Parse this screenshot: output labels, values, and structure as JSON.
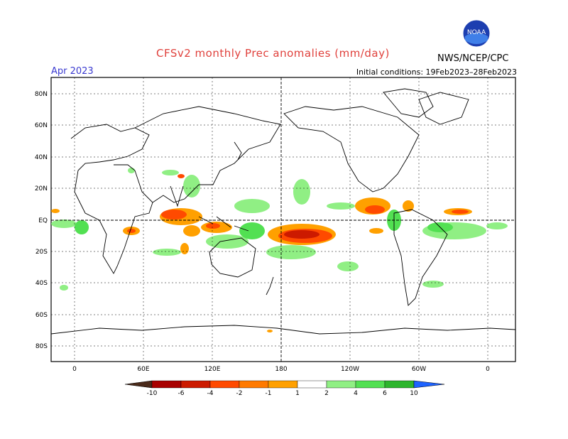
{
  "header": {
    "title": "CFSv2 monthly Prec anomalies (mm/day)",
    "month": "Apr 2023",
    "initial_conditions": "Initial conditions: 19Feb2023–28Feb2023",
    "org": "NWS/NCEP/CPC",
    "logo_text": "NOAA",
    "logo_icon": "noaa-logo-icon"
  },
  "map": {
    "lat_labels": [
      "80N",
      "60N",
      "40N",
      "20N",
      "EQ",
      "20S",
      "40S",
      "60S",
      "80S"
    ],
    "lon_labels": [
      "0",
      "60E",
      "120E",
      "180",
      "120W",
      "60W",
      "0"
    ]
  },
  "legend": {
    "labels": [
      "-10",
      "-6",
      "-4",
      "-2",
      "-1",
      "1",
      "2",
      "4",
      "6",
      "10"
    ],
    "colors": [
      "#4a2a1a",
      "#a80000",
      "#cc1a00",
      "#ff4a00",
      "#ff7a00",
      "#ffa000",
      "#ffffff",
      "#90ef84",
      "#52e052",
      "#2db52d",
      "#1a9e1a",
      "#1e63ff"
    ]
  }
}
